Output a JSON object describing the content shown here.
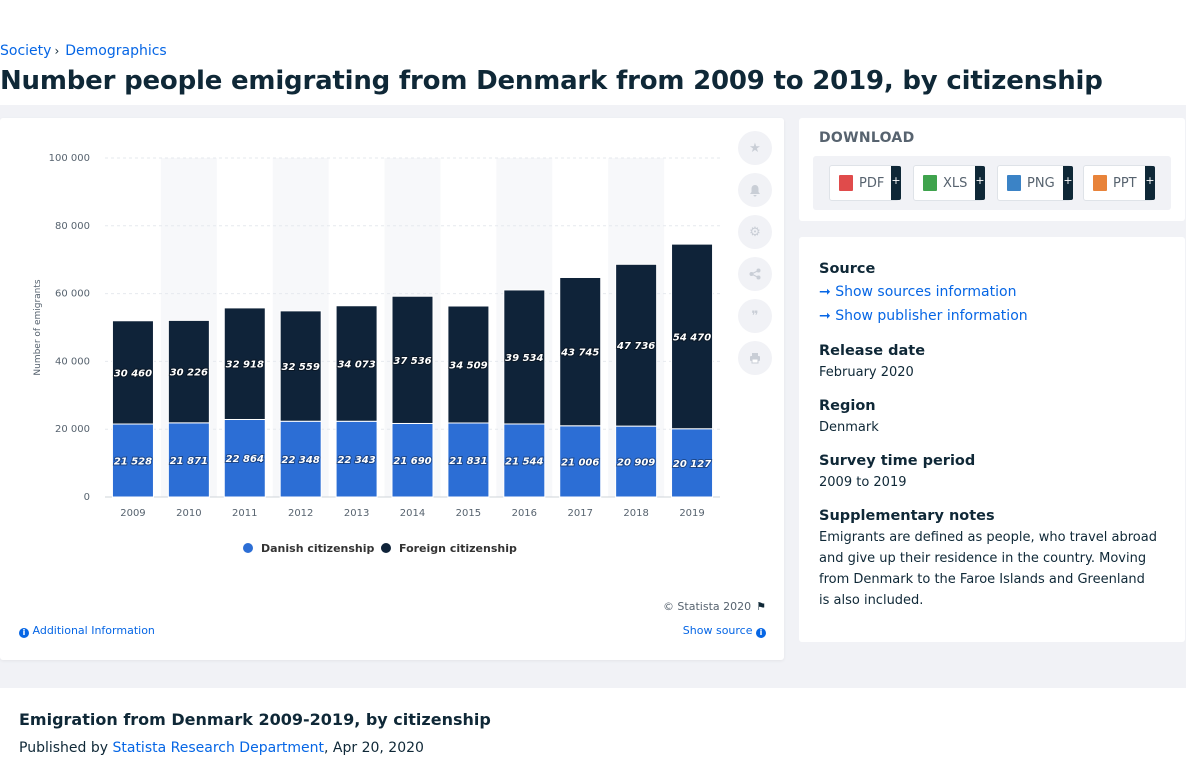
{
  "breadcrumb": {
    "item1": "Society",
    "item2": "Demographics",
    "separator": "›"
  },
  "page_title": "Number people emigrating from Denmark from 2009 to 2019, by citizenship",
  "chart_data": {
    "type": "bar",
    "stacked": true,
    "title": "",
    "xlabel": "",
    "ylabel": "Number of emigrants",
    "ylim": [
      0,
      100000
    ],
    "yticks": [
      0,
      20000,
      40000,
      60000,
      80000,
      100000
    ],
    "ytick_labels": [
      "0",
      "20 000",
      "40 000",
      "60 000",
      "80 000",
      "100 000"
    ],
    "categories": [
      "2009",
      "2010",
      "2011",
      "2012",
      "2013",
      "2014",
      "2015",
      "2016",
      "2017",
      "2018",
      "2019"
    ],
    "series": [
      {
        "name": "Danish citizenship",
        "color": "#2c6ed5",
        "values": [
          21528,
          21871,
          22864,
          22348,
          22343,
          21690,
          21831,
          21544,
          21006,
          20909,
          20127
        ],
        "labels": [
          "21 528",
          "21 871",
          "22 864",
          "22 348",
          "22 343",
          "21 690",
          "21 831",
          "21 544",
          "21 006",
          "20 909",
          "20 127"
        ]
      },
      {
        "name": "Foreign citizenship",
        "color": "#0f2339",
        "values": [
          30460,
          30226,
          32918,
          32559,
          34073,
          37536,
          34509,
          39534,
          43745,
          47736,
          54470
        ],
        "labels": [
          "30 460",
          "30 226",
          "32 918",
          "32 559",
          "34 073",
          "37 536",
          "34 509",
          "39 534",
          "43 745",
          "47 736",
          "54 470"
        ]
      }
    ],
    "grid": true,
    "legend_position": "bottom-center"
  },
  "chart_footer": {
    "copyright": "© Statista 2020",
    "additional_info": "Additional Information",
    "show_source": "Show source"
  },
  "tools": [
    "star-icon",
    "bell-icon",
    "gear-icon",
    "share-icon",
    "quote-icon",
    "print-icon"
  ],
  "download": {
    "title": "DOWNLOAD",
    "buttons": [
      {
        "label": "PDF",
        "plus": "+",
        "color": "#e04b4b"
      },
      {
        "label": "XLS",
        "plus": "+",
        "color": "#3fa34d"
      },
      {
        "label": "PNG",
        "plus": "+",
        "color": "#3b83c6"
      },
      {
        "label": "PPT",
        "plus": "+",
        "color": "#e8833a"
      }
    ]
  },
  "meta": {
    "source_heading": "Source",
    "show_sources": "Show sources information",
    "show_publisher": "Show publisher information",
    "release_heading": "Release date",
    "release_value": "February 2020",
    "region_heading": "Region",
    "region_value": "Denmark",
    "period_heading": "Survey time period",
    "period_value": "2009 to 2019",
    "notes_heading": "Supplementary notes",
    "notes_value": "Emigrants are defined as people, who travel abroad and give up their residence in the country. Moving from Denmark to the Faroe Islands and Greenland is also included."
  },
  "bottom": {
    "title": "Emigration from Denmark 2009-2019, by citizenship",
    "published_by": "Published by",
    "publisher": "Statista Research Department",
    "date": ", Apr 20, 2020"
  }
}
